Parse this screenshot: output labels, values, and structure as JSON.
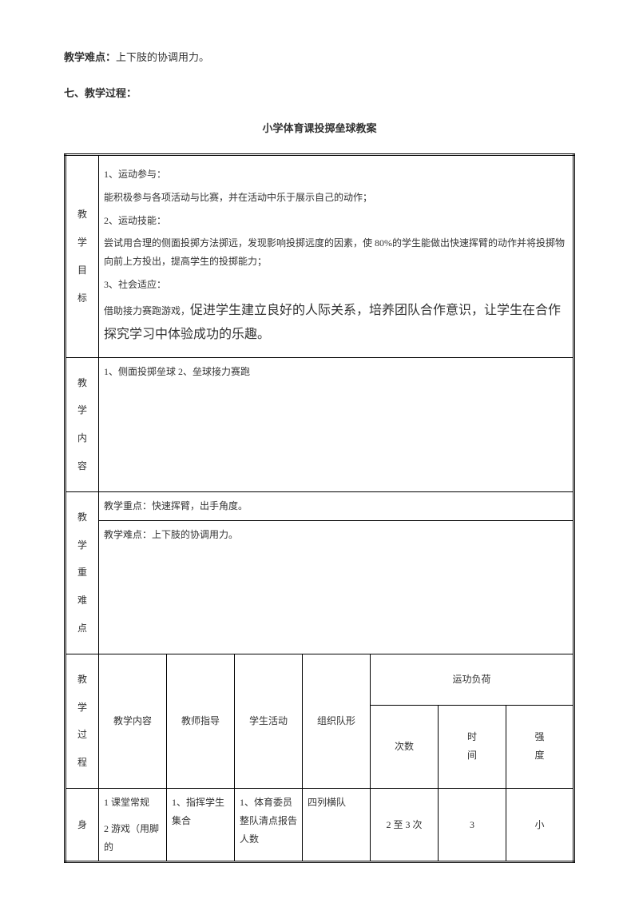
{
  "intro": {
    "difficulty_label": "教学难点：",
    "difficulty_text": "上下肢的协调用力。",
    "section_label": "七、教学过程："
  },
  "title": "小学体育课投掷垒球教案",
  "objectives": {
    "label_chars": [
      "教",
      "学",
      "目",
      "标"
    ],
    "p1": "1、运动参与：",
    "p2": "能积极参与各项活动与比赛，并在活动中乐于展示自己的动作；",
    "p3": "2、运动技能：",
    "p4": "尝试用合理的侧面投掷方法掷远，发现影响投掷远度的因素，使 80%的学生能做出快速挥臂的动作并将投掷物向前上方投出，提高学生的投掷能力；",
    "p5": "3、社会适应：",
    "p6a": "借助接力赛跑游戏，",
    "p6b": "促进学生建立良好的人际关系，培养团队合作意识，让学生在合作探究学习中体验成功的乐趣。"
  },
  "content": {
    "label_chars": [
      "教",
      "学",
      "内",
      "容"
    ],
    "text": "1、侧面投掷垒球  2、垒球接力赛跑"
  },
  "keypoints": {
    "label_chars": [
      "教",
      "学",
      "重",
      "难",
      "点"
    ],
    "key_text": "教学重点：快速挥臂，出手角度。",
    "diff_text": "教学难点：上下肢的协调用力。"
  },
  "process": {
    "label_chars": [
      "教",
      "学",
      "过",
      "程"
    ],
    "headers": {
      "content": "教学内容",
      "teacher": "教师指导",
      "student": "学生活动",
      "formation": "组织队形",
      "load": "运功负荷",
      "times": "次数",
      "time": "时间",
      "intensity": "强度"
    },
    "row1": {
      "phase": "身",
      "content_l1": "1 课堂常规",
      "content_l2": "2 游戏（用脚的",
      "teacher": "1、指挥学生集合",
      "student": "1、体育委员整队清点报告人数",
      "formation": "四列横队",
      "times": "2 至 3 次",
      "time": "3",
      "intensity": "小"
    }
  }
}
